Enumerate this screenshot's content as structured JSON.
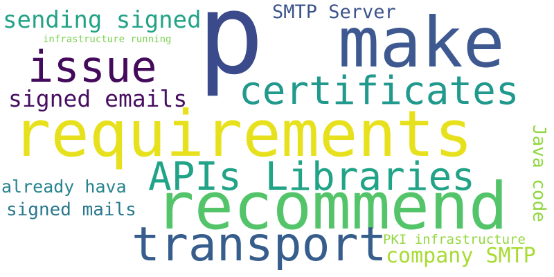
{
  "words": [
    {
      "text": "p",
      "color": "#3b4a8a"
    },
    {
      "text": "make",
      "color": "#3e5990"
    },
    {
      "text": "requirements",
      "color": "#e7e11d"
    },
    {
      "text": "recommend",
      "color": "#54c46a"
    },
    {
      "text": "certificates",
      "color": "#21998d"
    },
    {
      "text": "issue",
      "color": "#440a5c"
    },
    {
      "text": "transport",
      "color": "#365d8c"
    },
    {
      "text": "APIs Libraries",
      "color": "#20a386"
    },
    {
      "text": "sending signed",
      "color": "#22a287"
    },
    {
      "text": "SMTP Server",
      "color": "#3b538b"
    },
    {
      "text": "signed emails",
      "color": "#470d60"
    },
    {
      "text": "infrastructure running",
      "color": "#7ad151"
    },
    {
      "text": "already hava",
      "color": "#26848e"
    },
    {
      "text": "signed mails",
      "color": "#29788e"
    },
    {
      "text": "Java code",
      "color": "#90d743"
    },
    {
      "text": "PKI infrastructure",
      "color": "#93d741"
    },
    {
      "text": "company SMTP",
      "color": "#a8db34"
    }
  ]
}
